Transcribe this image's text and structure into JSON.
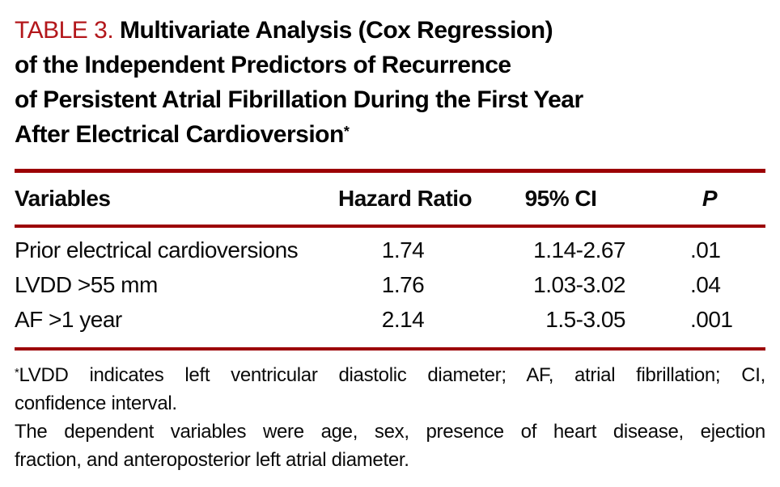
{
  "colors": {
    "title_red": "#b3171b",
    "rule_red": "#9c0004",
    "text_black": "#0a0a0a"
  },
  "title": {
    "label": "TABLE 3.",
    "lines": {
      "0": "Multivariate Analysis (Cox Regression)",
      "1": "of the Independent Predictors of Recurrence",
      "2": "of Persistent Atrial Fibrillation During the First Year",
      "3": "After Electrical Cardioversion"
    },
    "asterisk": "*"
  },
  "table": {
    "headers": {
      "variables": "Variables",
      "hazard_ratio": "Hazard Ratio",
      "ci": "95% CI",
      "p": "P"
    },
    "rows": [
      {
        "variable": "Prior electrical cardioversions",
        "hazard_ratio": "1.74",
        "ci": "1.14-2.67",
        "p": ".01"
      },
      {
        "variable": "LVDD >55 mm",
        "hazard_ratio": "1.76",
        "ci": "1.03-3.02",
        "p": ".04"
      },
      {
        "variable": "AF >1 year",
        "hazard_ratio": "2.14",
        "ci": "1.5-3.05",
        "p": ".001"
      }
    ]
  },
  "footnotes": {
    "abbrev": {
      "marker": "*",
      "lines": {
        "0": "LVDD indicates left ventricular diastolic diameter; AF, atrial fibrillation; CI,",
        "1": "confidence interval."
      }
    },
    "dependent": {
      "lines": {
        "0": "The dependent variables were age, sex, presence of heart disease, ejection",
        "1": "fraction, and anteroposterior left atrial diameter."
      }
    }
  }
}
